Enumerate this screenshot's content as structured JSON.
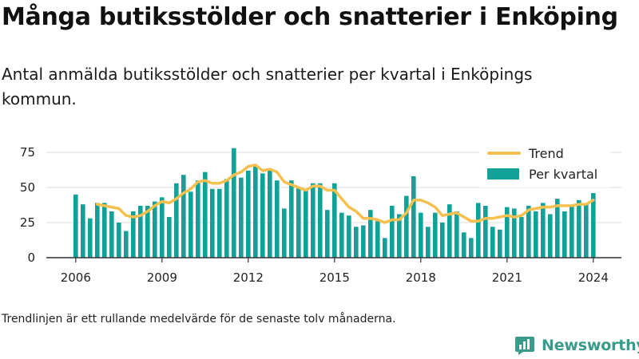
{
  "page": {
    "title": "Många butiksstölder och snatterier i Enköping",
    "subtitle": "Antal anmälda butiksstölder och snatterier per kvartal i Enköpings kommun.",
    "footnote": "Trendlinjen är ett rullande medelvärde för de senaste tolv månaderna.",
    "logo_text": "Newsworthy"
  },
  "colors": {
    "bar": "#11a197",
    "trend": "#f4c150",
    "grid": "#dedede",
    "axis": "#333333",
    "logo": "#3a9b8b"
  },
  "chart_data": {
    "type": "bar",
    "title": "",
    "xlabel": "",
    "ylabel": "",
    "ylim": [
      0,
      80
    ],
    "yticks": [
      0,
      25,
      50,
      75
    ],
    "xticks": [
      2006,
      2009,
      2012,
      2015,
      2018,
      2021,
      2024
    ],
    "grid": true,
    "legend_position": "top-right",
    "x_start_quarter": "2006Q1",
    "series": [
      {
        "name": "Per kvartal",
        "type": "bar",
        "values": [
          45,
          38,
          28,
          39,
          39,
          33,
          25,
          19,
          33,
          37,
          37,
          40,
          43,
          29,
          53,
          59,
          47,
          55,
          61,
          49,
          49,
          56,
          78,
          57,
          62,
          65,
          60,
          63,
          55,
          35,
          55,
          50,
          48,
          53,
          53,
          34,
          53,
          32,
          30,
          22,
          23,
          34,
          26,
          14,
          37,
          31,
          44,
          58,
          32,
          22,
          32,
          25,
          38,
          33,
          18,
          14,
          39,
          37,
          22,
          20,
          36,
          35,
          29,
          37,
          33,
          39,
          31,
          42,
          33,
          37,
          41,
          38,
          46
        ]
      },
      {
        "name": "Trend",
        "type": "line",
        "values": [
          null,
          null,
          null,
          38,
          37,
          36,
          35,
          30,
          29,
          30,
          33,
          37,
          40,
          39,
          42,
          46,
          49,
          54,
          55,
          53,
          53,
          55,
          59,
          61,
          65,
          66,
          62,
          63,
          61,
          54,
          52,
          50,
          48,
          51,
          51,
          48,
          48,
          42,
          36,
          33,
          28,
          28,
          27,
          25,
          27,
          27,
          32,
          41,
          41,
          39,
          36,
          30,
          31,
          32,
          29,
          26,
          26,
          28,
          28,
          29,
          30,
          29,
          30,
          34,
          35,
          36,
          36,
          37,
          37,
          37,
          38,
          38,
          41
        ]
      }
    ]
  }
}
